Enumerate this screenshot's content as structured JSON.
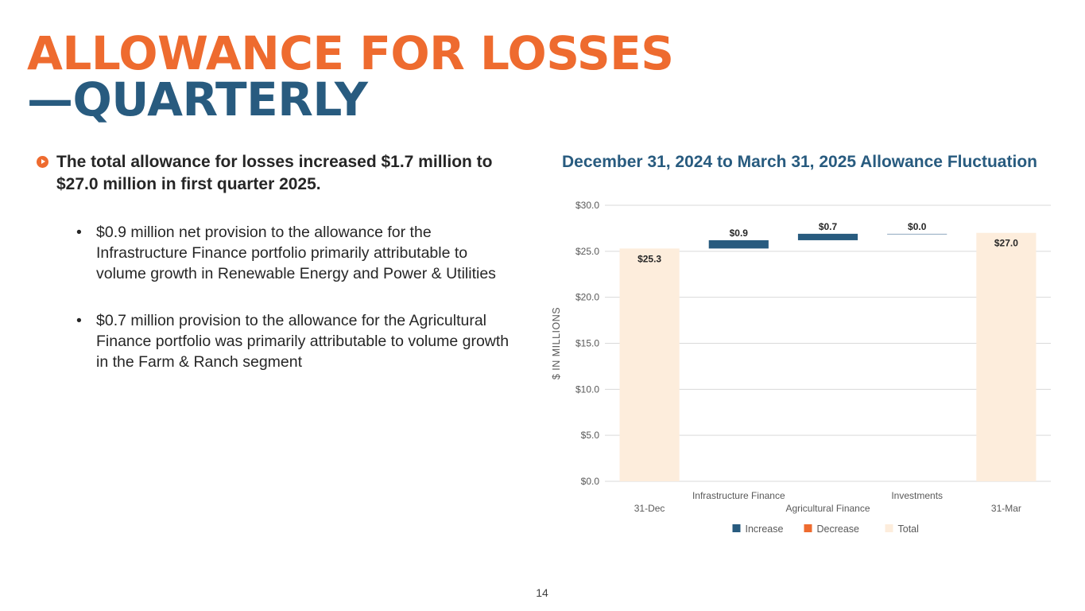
{
  "title": {
    "line1": "ALLOWANCE FOR LOSSES",
    "line2": "—QUARTERLY"
  },
  "summary_bullet": "The total allowance for losses increased $1.7 million to $27.0 million in first quarter 2025.",
  "sub_bullets": [
    {
      "dot": "•",
      "text": "$0.9 million net provision to the allowance for the Infrastructure Finance portfolio primarily attributable to volume growth in Renewable Energy and Power & Utilities"
    },
    {
      "dot": "•",
      "text": "$0.7 million provision to the allowance for the Agricultural Finance portfolio was primarily attributable to volume growth in the Farm & Ranch segment"
    }
  ],
  "page_number": "14",
  "colors": {
    "orange": "#EE6B2F",
    "navy": "#285B7F",
    "total_fill": "#FDEDDC",
    "increase": "#285B7F",
    "decrease": "#EE6B2F",
    "gridline": "#D9D9D9",
    "axis_text": "#595959"
  },
  "chart_data": {
    "type": "waterfall",
    "title": "December 31, 2024 to March 31, 2025 Allowance Fluctuation",
    "ylabel": "$ IN MILLIONS",
    "ylim": [
      0,
      30
    ],
    "yticks": [
      0,
      5,
      10,
      15,
      20,
      25,
      30
    ],
    "ytick_labels": [
      "$0.0",
      "$5.0",
      "$10.0",
      "$15.0",
      "$20.0",
      "$25.0",
      "$30.0"
    ],
    "categories": [
      "31-Dec",
      "Infrastructure Finance",
      "Agricultural Finance",
      "Investments",
      "31-Mar"
    ],
    "series": [
      {
        "name": "Total",
        "values": [
          25.3,
          null,
          null,
          null,
          27.0
        ]
      },
      {
        "name": "Increase",
        "values": [
          null,
          0.9,
          0.7,
          0.0,
          null
        ]
      },
      {
        "name": "Decrease",
        "values": [
          null,
          null,
          null,
          null,
          null
        ]
      }
    ],
    "bar_kind": [
      "total",
      "increase",
      "increase",
      "increase",
      "total"
    ],
    "data_labels": [
      "$25.3",
      "$0.9",
      "$0.7",
      "$0.0",
      "$27.0"
    ],
    "legend": [
      "Increase",
      "Decrease",
      "Total"
    ],
    "legend_position": "bottom",
    "grid": true
  }
}
